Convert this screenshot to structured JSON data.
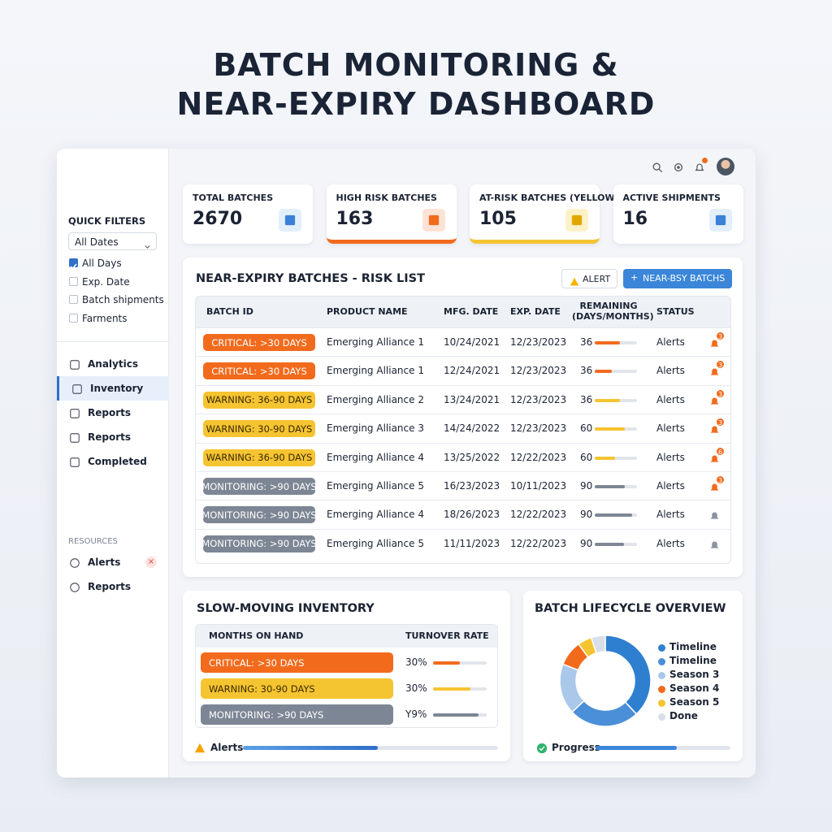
{
  "header": {
    "title_lines": [
      "BATCH MONITORING &",
      "NEAR-EXPIRY DASHBOARD"
    ]
  },
  "sidebar": {
    "quick_filters": "QUICK FILTERS",
    "date_select": "All Dates",
    "checkboxes": [
      {
        "label": "All Days",
        "checked": true
      },
      {
        "label": "Exp. Date",
        "checked": false
      },
      {
        "label": "Batch shipments",
        "checked": false
      },
      {
        "label": "Farments",
        "checked": false
      }
    ],
    "nav": [
      "Analytics",
      "Inventory",
      "Reports",
      "Reports",
      "Completed"
    ],
    "active_nav": 1,
    "resources_title": "RESOURCES",
    "resources": [
      "Alerts",
      "Reports"
    ]
  },
  "kpis": [
    {
      "label": "TOTAL BATCHES",
      "value": 2670
    },
    {
      "label": "HIGH RISK BATCHES",
      "value": 163,
      "accent": "#f26b1d"
    },
    {
      "label": "AT-RISK BATCHES (YELLOW)",
      "value": 105,
      "accent": "#f5c431"
    },
    {
      "label": "ACTIVE SHIPMENTS",
      "value": 16
    }
  ],
  "risk_list": {
    "title": "NEAR-EXPIRY BATCHES - RISK LIST",
    "alert_button": "ALERT",
    "action_button": "NEAR-BSY BATCHS",
    "columns": [
      "BATCH ID",
      "PRODUCT NAME",
      "MFG. DATE",
      "EXP. DATE",
      "REMAINING (DAYS/MONTHS)",
      "STATUS"
    ],
    "rows": [
      {
        "batch": "CRITICAL: >30 DAYS",
        "level": "critical",
        "product": "Emerging Alliance 1",
        "mfg": "10/24/2021",
        "exp": "12/23/2023",
        "remaining": 36,
        "bar": 60,
        "status": "Alerts",
        "badge": "3"
      },
      {
        "batch": "CRITICAL: >30 DAYS",
        "level": "critical",
        "product": "Emerging Alliance 1",
        "mfg": "12/24/2021",
        "exp": "12/23/2023",
        "remaining": 36,
        "bar": 40,
        "status": "Alerts",
        "badge": "3"
      },
      {
        "batch": "WARNING: 36-90 DAYS",
        "level": "warning",
        "product": "Emerging Alliance 2",
        "mfg": "13/24/2021",
        "exp": "12/23/2023",
        "remaining": 36,
        "bar": 60,
        "status": "Alerts",
        "badge": "3"
      },
      {
        "batch": "WARNING: 30-90 DAYS",
        "level": "warning",
        "product": "Emerging Alliance 3",
        "mfg": "14/24/2022",
        "exp": "12/23/2023",
        "remaining": 60,
        "bar": 72,
        "status": "Alerts",
        "badge": "3"
      },
      {
        "batch": "WARNING: 36-90 DAYS",
        "level": "warning",
        "product": "Emerging Alliance 4",
        "mfg": "13/25/2022",
        "exp": "12/22/2023",
        "remaining": 60,
        "bar": 48,
        "status": "Alerts",
        "badge": "6"
      },
      {
        "batch": "MONITORING: >90 DAYS",
        "level": "monitoring",
        "product": "Emerging Alliance 5",
        "mfg": "16/23/2023",
        "exp": "10/11/2023",
        "remaining": 90,
        "bar": 72,
        "status": "Alerts",
        "badge": "3"
      },
      {
        "batch": "MONITORING: >90 DAYS",
        "level": "monitoring",
        "product": "Emerging Alliance 4",
        "mfg": "18/26/2023",
        "exp": "12/22/2023",
        "remaining": 90,
        "bar": 88,
        "status": "Alerts"
      },
      {
        "batch": "MONITORING: >90 DAYS",
        "level": "monitoring",
        "product": "Emerging Alliance 5",
        "mfg": "11/11/2023",
        "exp": "12/22/2023",
        "remaining": 90,
        "bar": 70,
        "status": "Alerts"
      }
    ]
  },
  "slow_moving": {
    "title": "SLOW-MOVING INVENTORY",
    "columns": [
      "MONTHS ON HAND",
      "TURNOVER RATE"
    ],
    "rows": [
      {
        "label": "CRITICAL: >30 DAYS",
        "level": "critical",
        "rate": "30%",
        "bar": 50
      },
      {
        "label": "WARNING: 30-90 DAYS",
        "level": "warning",
        "rate": "30%",
        "bar": 70
      },
      {
        "label": "MONITORING: >90 DAYS",
        "level": "monitoring",
        "rate": "Y9%",
        "bar": 85
      }
    ],
    "footer": "Alerts",
    "footer_bar": 53
  },
  "lifecycle": {
    "title": "BATCH LIFECYCLE OVERVIEW",
    "segments": [
      {
        "name": "Timeline",
        "color": "#2f7fd0",
        "value": 38
      },
      {
        "name": "Timeline",
        "color": "#4a8fd8",
        "value": 25
      },
      {
        "name": "Season 3",
        "color": "#a9c8ea",
        "value": 18
      },
      {
        "name": "Season 4",
        "color": "#f26b1d",
        "value": 9
      },
      {
        "name": "Season 5",
        "color": "#f5c431",
        "value": 5
      },
      {
        "name": "Done",
        "color": "#d9dfe8",
        "value": 5
      }
    ],
    "footer": "Progress",
    "footer_bar": 60
  }
}
